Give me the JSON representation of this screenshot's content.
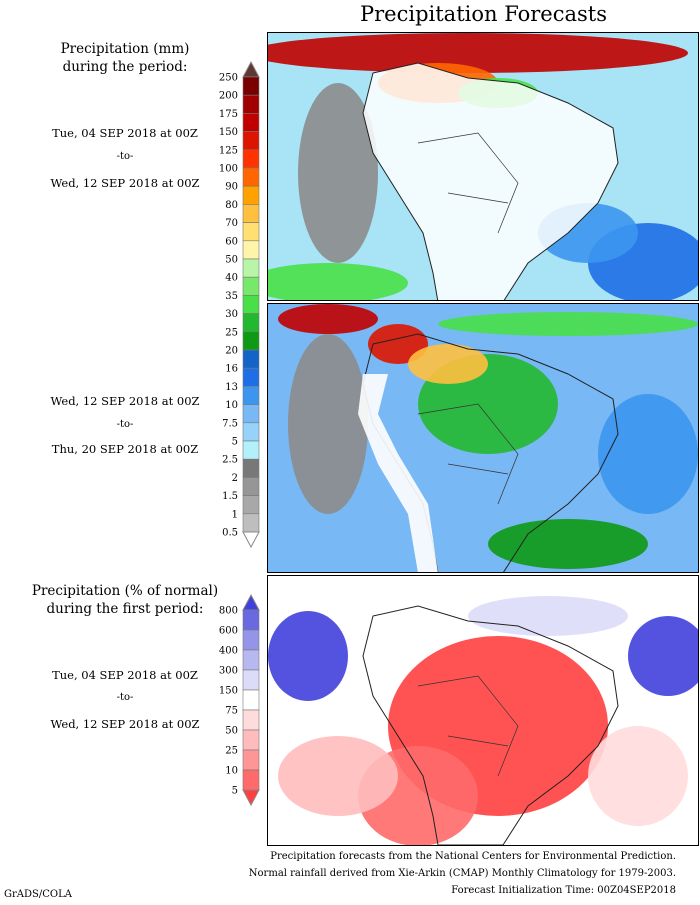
{
  "title": "Precipitation Forecasts",
  "left": {
    "p1_heading": [
      "Precipitation (mm)",
      "during the period:"
    ],
    "p1_from": "Tue, 04 SEP 2018 at 00Z",
    "p1_to": "-to-",
    "p1_end": "Wed, 12 SEP 2018 at 00Z",
    "p2_from": "Wed, 12 SEP 2018 at 00Z",
    "p2_to": "-to-",
    "p2_end": "Thu, 20 SEP 2018 at 00Z",
    "p3_heading": [
      "Precipitation (% of normal)",
      "during the first period:"
    ],
    "p3_from": "Tue, 04 SEP 2018 at 00Z",
    "p3_to": "-to-",
    "p3_end": "Wed, 12 SEP 2018 at 00Z"
  },
  "footer": [
    "Precipitation forecasts from the National Centers for Environmental Prediction.",
    "Normal rainfall derived from Xie-Arkin (CMAP) Monthly Climatology for 1979-2003.",
    "Forecast Initialization Time: 00Z04SEP2018"
  ],
  "credit": "GrADS/COLA",
  "chart_data": [
    {
      "type": "heatmap",
      "title": "Precipitation (mm)",
      "units": "mm",
      "levels": [
        "250",
        "200",
        "175",
        "150",
        "125",
        "100",
        "90",
        "80",
        "70",
        "60",
        "50",
        "40",
        "35",
        "30",
        "25",
        "20",
        "16",
        "13",
        "10",
        "7.5",
        "5",
        "2.5",
        "2",
        "1.5",
        "1",
        "0.5"
      ],
      "colors": [
        "#5c3a33",
        "#7a0000",
        "#a00000",
        "#c00000",
        "#dd1500",
        "#ff3300",
        "#ff6600",
        "#ffa200",
        "#ffc040",
        "#ffe070",
        "#fff5aa",
        "#b8f5a8",
        "#78e86a",
        "#48e048",
        "#22b830",
        "#0e9a14",
        "#1464c8",
        "#1e6ee6",
        "#3c96f0",
        "#78b8f5",
        "#96d2fa",
        "#b4f0fa",
        "#787878",
        "#969696",
        "#a8a8a8",
        "#bebebe",
        "#ffffff"
      ]
    },
    {
      "type": "heatmap",
      "title": "Precipitation (% of normal)",
      "units": "%",
      "levels": [
        "800",
        "600",
        "400",
        "300",
        "150",
        "75",
        "50",
        "25",
        "10",
        "5"
      ],
      "colors": [
        "#4040dc",
        "#6a6ae0",
        "#9494e8",
        "#b8b8f0",
        "#dcdcf8",
        "#ffffff",
        "#ffdcdc",
        "#ffbcbc",
        "#ff9696",
        "#ff6a6a",
        "#ff4040"
      ]
    }
  ]
}
